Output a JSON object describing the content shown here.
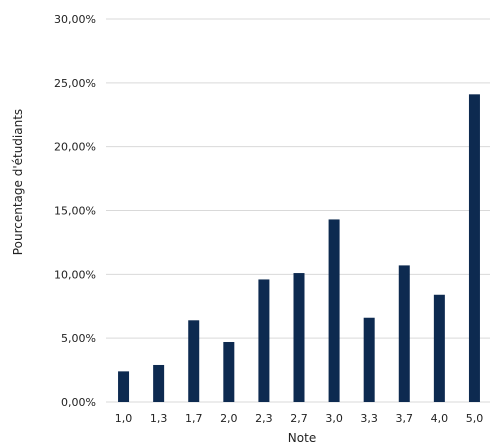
{
  "chart_data": {
    "type": "bar",
    "categories": [
      "1,0",
      "1,3",
      "1,7",
      "2,0",
      "2,3",
      "2,7",
      "3,0",
      "3,3",
      "3,7",
      "4,0",
      "5,0"
    ],
    "values": [
      2.4,
      2.9,
      6.4,
      4.7,
      9.6,
      10.1,
      14.3,
      6.6,
      10.7,
      8.4,
      24.1
    ],
    "xlabel": "Note",
    "ylabel": "Pourcentage d'étudiants",
    "ylim": [
      0,
      30
    ],
    "yticks": [
      0,
      5,
      10,
      15,
      20,
      25,
      30
    ],
    "ytick_labels": [
      "0,00%",
      "5,00%",
      "10,00%",
      "15,00%",
      "20,00%",
      "25,00%",
      "30,00%"
    ],
    "grid": true,
    "bar_color": "#0d2a50",
    "grid_color": "#d9d9d9"
  }
}
